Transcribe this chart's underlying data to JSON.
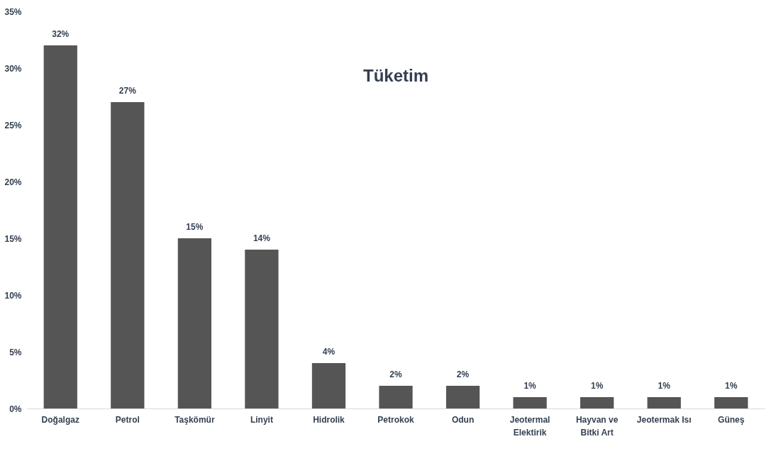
{
  "chart_data": {
    "type": "bar",
    "title": "Tüketim",
    "categories": [
      "Doğalgaz",
      "Petrol",
      "Taşkömür",
      "Linyit",
      "Hidrolik",
      "Petrokok",
      "Odun",
      "Jeotermal Elektirik",
      "Hayvan ve Bitki Art",
      "Jeotermak Isı",
      "Güneş"
    ],
    "values": [
      32,
      27,
      15,
      14,
      4,
      2,
      2,
      1,
      1,
      1,
      1
    ],
    "value_labels": [
      "32%",
      "27%",
      "15%",
      "14%",
      "4%",
      "2%",
      "2%",
      "1%",
      "1%",
      "1%",
      "1%"
    ],
    "color": "#555555",
    "ylim": [
      0,
      35
    ],
    "yticks": [
      {
        "value": 0,
        "label": "0%"
      },
      {
        "value": 5,
        "label": "5%"
      },
      {
        "value": 10,
        "label": "10%"
      },
      {
        "value": 15,
        "label": "15%"
      },
      {
        "value": 20,
        "label": "20%"
      },
      {
        "value": 25,
        "label": "25%"
      },
      {
        "value": 30,
        "label": "30%"
      },
      {
        "value": 35,
        "label": "35%"
      }
    ],
    "grid": false
  }
}
